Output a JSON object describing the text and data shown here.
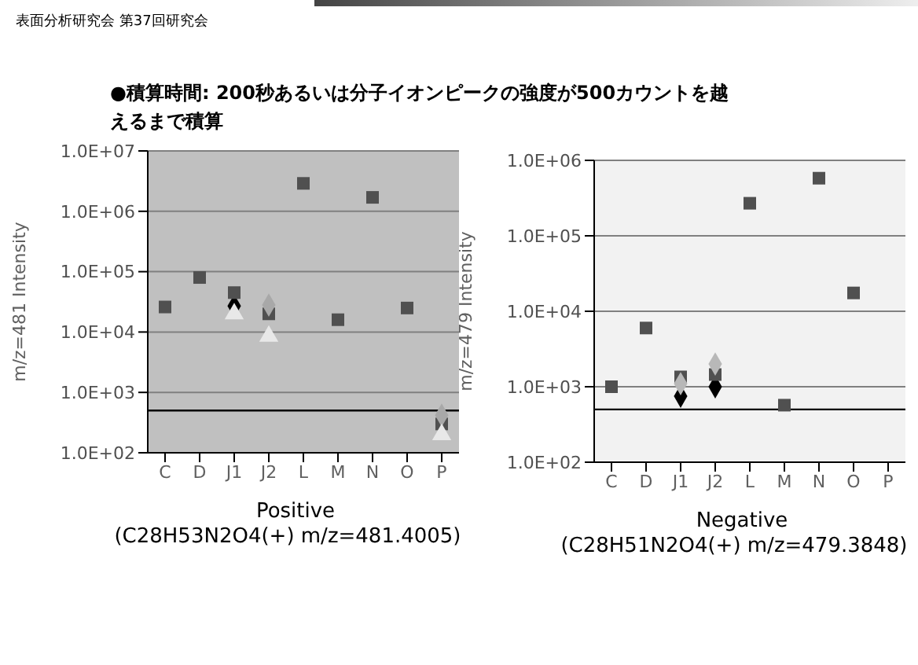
{
  "chart_data": [
    {
      "type": "scatter",
      "title": "●積算時間: 200秒あるいは分子イオンピークの強度が500カウントを越えるまで積算",
      "annotations": [
        "表面分析研究会  第37回研究会",
        "(C28H53N2O4(+)  m/z=481.4005)"
      ],
      "xlabel": "Positive",
      "ylabel": "m/z=481 Intensity",
      "log": "y",
      "grid": "y",
      "categories": [
        "C",
        "D",
        "J1",
        "J2",
        "L",
        "M",
        "N",
        "O",
        "P"
      ],
      "ylim": [
        100,
        10000000
      ],
      "yticks": [
        {
          "value": 100,
          "label": "1.0E+02"
        },
        {
          "value": 1000,
          "label": "1.0E+03"
        },
        {
          "value": 10000,
          "label": "1.0E+04"
        },
        {
          "value": 100000,
          "label": "1.0E+05"
        },
        {
          "value": 1000000,
          "label": "1.0E+06"
        },
        {
          "value": 10000000,
          "label": "1.0E+07"
        }
      ],
      "ref_lines": [
        {
          "axis": "y",
          "value": 500,
          "color": "#000000"
        }
      ],
      "series": [
        {
          "color": "#000000",
          "marker": "diamond",
          "values": [
            null,
            null,
            27000,
            null,
            null,
            null,
            null,
            null,
            null
          ]
        },
        {
          "color": "#505050",
          "marker": "square",
          "values": [
            26000,
            80000,
            45000,
            20000,
            2900000,
            16000,
            1700000,
            25000,
            300
          ]
        },
        {
          "color": "#a8a8a8",
          "marker": "diamond",
          "values": [
            null,
            null,
            null,
            28000,
            null,
            null,
            null,
            null,
            420
          ]
        },
        {
          "color": "#e8e8e8",
          "marker": "triangle",
          "values": [
            null,
            null,
            20000,
            8500,
            null,
            null,
            null,
            null,
            200
          ]
        }
      ]
    },
    {
      "type": "scatter",
      "annotations": [
        "(C28H51N2O4(+)  m/z=479.3848)"
      ],
      "xlabel": "Negative",
      "ylabel": "m/z=479 Intensity",
      "log": "y",
      "grid": "y",
      "categories": [
        "C",
        "D",
        "J1",
        "J2",
        "L",
        "M",
        "N",
        "O",
        "P"
      ],
      "ylim": [
        100,
        1000000
      ],
      "yticks": [
        {
          "value": 100,
          "label": "1.0E+02"
        },
        {
          "value": 1000,
          "label": "1.0E+03"
        },
        {
          "value": 10000,
          "label": "1.0E+04"
        },
        {
          "value": 100000,
          "label": "1.0E+05"
        },
        {
          "value": 1000000,
          "label": "1.0E+06"
        }
      ],
      "ref_lines": [
        {
          "axis": "y",
          "value": 500,
          "color": "#000000"
        }
      ],
      "series": [
        {
          "color": "#000000",
          "marker": "diamond",
          "values": [
            null,
            null,
            750,
            1000,
            null,
            null,
            null,
            null,
            null
          ]
        },
        {
          "color": "#505050",
          "marker": "square",
          "values": [
            1000,
            6000,
            1350,
            1450,
            270000,
            570,
            580000,
            17500,
            null
          ]
        },
        {
          "color": "#b8b8b8",
          "marker": "diamond",
          "values": [
            null,
            null,
            1100,
            2000,
            null,
            null,
            null,
            null,
            null
          ]
        }
      ]
    }
  ]
}
